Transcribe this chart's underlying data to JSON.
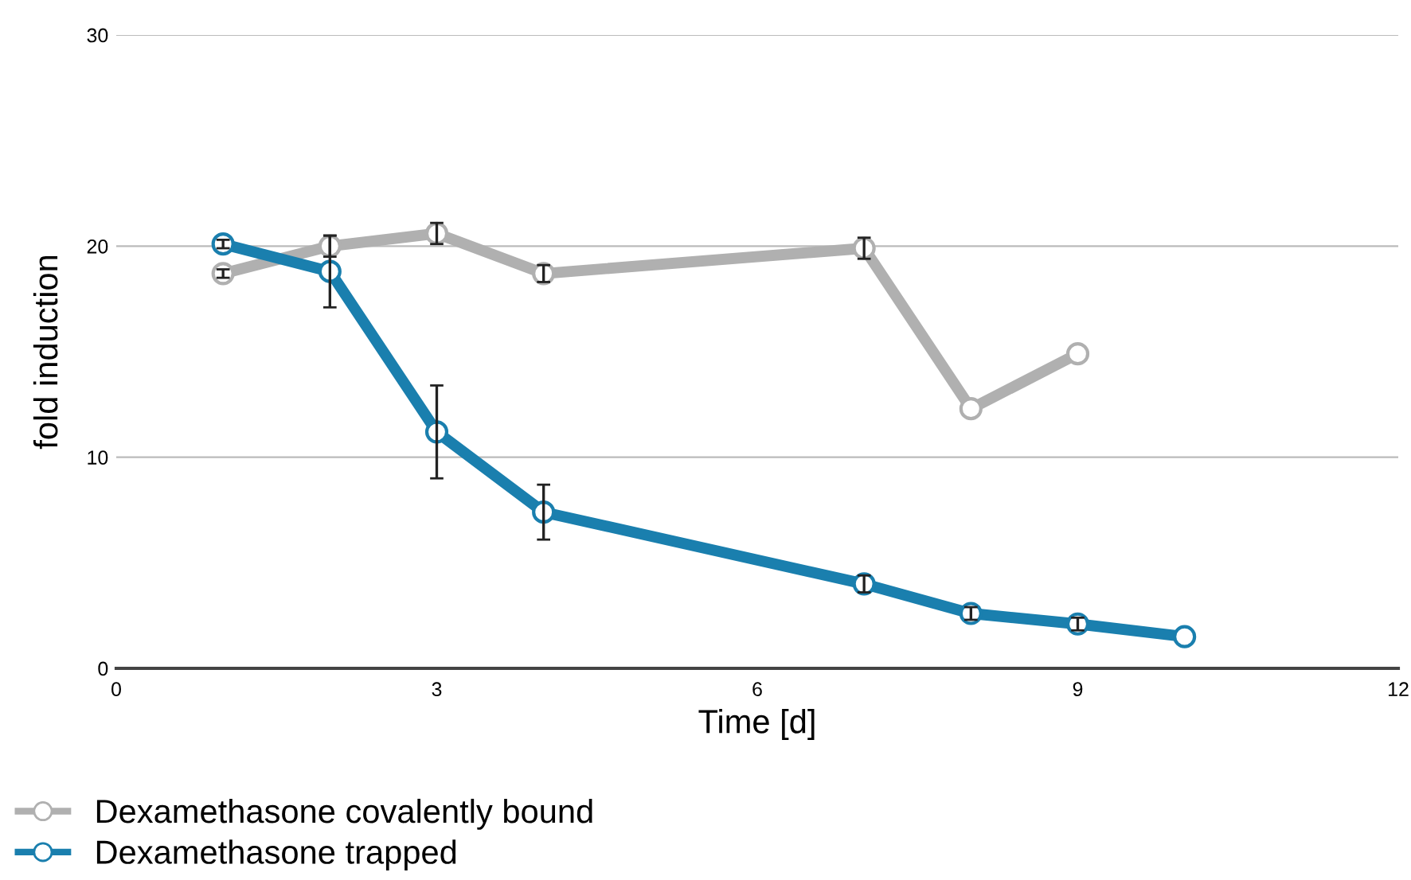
{
  "chart_data": {
    "type": "line",
    "xlabel": "Time [d]",
    "ylabel": "fold induction",
    "xlim": [
      0,
      12
    ],
    "xticks": [
      0,
      3,
      6,
      9,
      12
    ],
    "ylim": [
      0,
      30
    ],
    "yticks": [
      0,
      10,
      20,
      30
    ],
    "grid": "y",
    "legend": "bottom left",
    "marker": "circle",
    "line_style": "solid",
    "series": [
      {
        "name": "Dexamethasone covalently bound",
        "color": "#b0b0b0",
        "x": [
          1,
          2,
          3,
          4,
          7,
          8,
          9
        ],
        "values": [
          18.7,
          20.0,
          20.6,
          18.7,
          19.9,
          12.3,
          14.9
        ],
        "errors": [
          0.2,
          0.5,
          0.5,
          0.4,
          0.5,
          null,
          null
        ]
      },
      {
        "name": "Dexamethasone trapped",
        "color": "#1a7fae",
        "x": [
          1,
          2,
          3,
          4,
          7,
          8,
          9,
          10
        ],
        "values": [
          20.1,
          18.8,
          11.2,
          7.4,
          4.0,
          2.6,
          2.1,
          1.5
        ],
        "errors": [
          0.2,
          1.7,
          2.2,
          1.3,
          0.4,
          0.3,
          0.3,
          null
        ]
      }
    ]
  }
}
